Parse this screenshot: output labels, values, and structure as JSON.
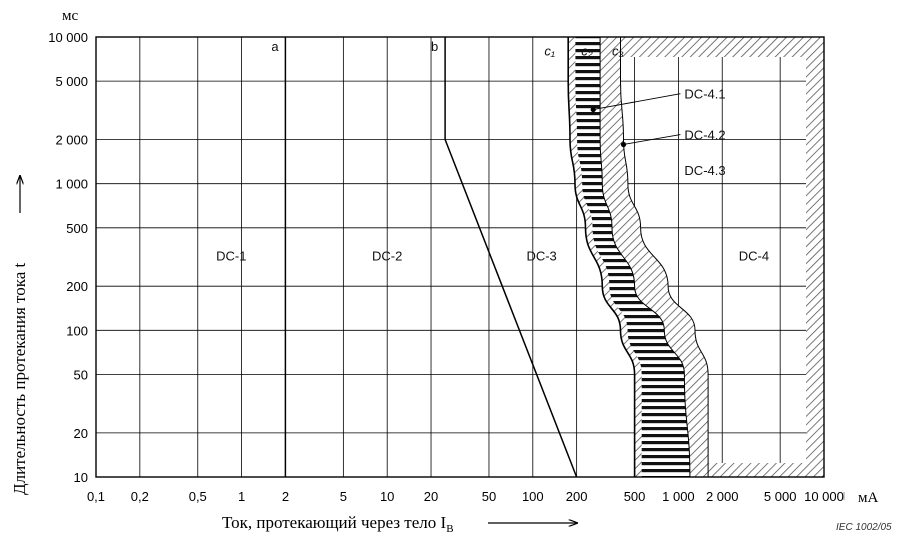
{
  "chart_data": {
    "type": "line",
    "x_scale": "log",
    "y_scale": "log",
    "x_unit": "мА",
    "y_unit": "мс",
    "xlabel": "Ток, протекающий через тело I",
    "xlabel_sub": "B",
    "ylabel": "Длительность протекания тока t",
    "xlim": [
      0.1,
      10000
    ],
    "ylim": [
      10,
      10000
    ],
    "x_ticks": [
      {
        "v": 0.1,
        "label": "0,1"
      },
      {
        "v": 0.2,
        "label": "0,2"
      },
      {
        "v": 0.5,
        "label": "0,5"
      },
      {
        "v": 1,
        "label": "1"
      },
      {
        "v": 2,
        "label": "2"
      },
      {
        "v": 5,
        "label": "5"
      },
      {
        "v": 10,
        "label": "10"
      },
      {
        "v": 20,
        "label": "20"
      },
      {
        "v": 50,
        "label": "50"
      },
      {
        "v": 100,
        "label": "100"
      },
      {
        "v": 200,
        "label": "200"
      },
      {
        "v": 500,
        "label": "500"
      },
      {
        "v": 1000,
        "label": "1 000"
      },
      {
        "v": 2000,
        "label": "2 000"
      },
      {
        "v": 5000,
        "label": "5 000"
      },
      {
        "v": 10000,
        "label": "10 000"
      }
    ],
    "y_ticks": [
      {
        "v": 10,
        "label": "10"
      },
      {
        "v": 20,
        "label": "20"
      },
      {
        "v": 50,
        "label": "50"
      },
      {
        "v": 100,
        "label": "100"
      },
      {
        "v": 200,
        "label": "200"
      },
      {
        "v": 500,
        "label": "500"
      },
      {
        "v": 1000,
        "label": "1 000"
      },
      {
        "v": 2000,
        "label": "2 000"
      },
      {
        "v": 5000,
        "label": "5 000"
      },
      {
        "v": 10000,
        "label": "10 000"
      }
    ],
    "grid": true,
    "curves": [
      {
        "name": "a",
        "points": [
          [
            2,
            10
          ],
          [
            2,
            10000
          ]
        ]
      },
      {
        "name": "b",
        "points": [
          [
            200,
            10
          ],
          [
            25,
            2000
          ],
          [
            25,
            10000
          ]
        ]
      },
      {
        "name": "c1",
        "points": [
          [
            500,
            10
          ],
          [
            500,
            50
          ],
          [
            400,
            100
          ],
          [
            300,
            200
          ],
          [
            230,
            500
          ],
          [
            195,
            1000
          ],
          [
            180,
            2000
          ],
          [
            175,
            5000
          ],
          [
            175,
            10000
          ]
        ]
      },
      {
        "name": "c2",
        "points": [
          [
            1200,
            10
          ],
          [
            1100,
            50
          ],
          [
            800,
            100
          ],
          [
            500,
            200
          ],
          [
            350,
            500
          ],
          [
            300,
            1000
          ],
          [
            290,
            2000
          ],
          [
            290,
            5000
          ],
          [
            290,
            10000
          ]
        ]
      },
      {
        "name": "c3",
        "points": [
          [
            1600,
            10
          ],
          [
            1600,
            50
          ],
          [
            1300,
            100
          ],
          [
            850,
            200
          ],
          [
            550,
            500
          ],
          [
            450,
            1000
          ],
          [
            420,
            2000
          ],
          [
            400,
            5000
          ],
          [
            400,
            10000
          ]
        ]
      }
    ],
    "curve_labels": [
      {
        "text": "a",
        "x": 1.6,
        "y": 8000
      },
      {
        "text": "b",
        "x": 20,
        "y": 8000
      },
      {
        "text": "c₁",
        "x": 120,
        "y": 7500
      },
      {
        "text": "c₂",
        "x": 215,
        "y": 7500
      },
      {
        "text": "c₃",
        "x": 350,
        "y": 7500
      }
    ],
    "regions": [
      {
        "text": "DC-1",
        "x": 0.85,
        "y": 300
      },
      {
        "text": "DC-2",
        "x": 10,
        "y": 300
      },
      {
        "text": "DC-3",
        "x": 115,
        "y": 300
      },
      {
        "text": "DC-4",
        "x": 3300,
        "y": 300
      }
    ],
    "annotations": [
      {
        "text": "DC-4.1",
        "x": 1100,
        "y": 3800,
        "arrow_to": [
          260,
          3200
        ],
        "dot": true
      },
      {
        "text": "DC-4.2",
        "x": 1100,
        "y": 2000,
        "arrow_to": [
          420,
          1850
        ],
        "dot": true
      },
      {
        "text": "DC-4.3",
        "x": 1100,
        "y": 1150
      }
    ],
    "footnote": "IEC  1002/05"
  }
}
